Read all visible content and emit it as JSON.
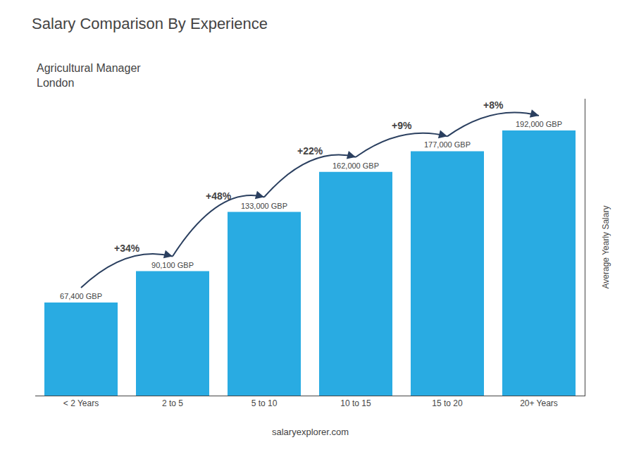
{
  "chart_data": {
    "type": "bar",
    "title": "Salary Comparison By Experience",
    "subtitle": [
      "Agricultural Manager",
      "London"
    ],
    "ylabel": "Average Yearly Salary",
    "categories": [
      "< 2 Years",
      "2 to 5",
      "5 to 10",
      "10 to 15",
      "15 to 20",
      "20+ Years"
    ],
    "values": [
      67400,
      90100,
      133000,
      162000,
      177000,
      192000
    ],
    "value_labels": [
      "67,400 GBP",
      "90,100 GBP",
      "133,000 GBP",
      "162,000 GBP",
      "177,000 GBP",
      "192,000 GBP"
    ],
    "data_labels": true,
    "color": "#29ABE2",
    "ylim": [
      0,
      215000
    ],
    "tick_labels": "x",
    "grid": false,
    "annotations": [
      {
        "text": "+34%",
        "from": "< 2 Years",
        "to": "2 to 5"
      },
      {
        "text": "+48%",
        "from": "2 to 5",
        "to": "5 to 10"
      },
      {
        "text": "+22%",
        "from": "5 to 10",
        "to": "10 to 15"
      },
      {
        "text": "+9%",
        "from": "10 to 15",
        "to": "15 to 20"
      },
      {
        "text": "+8%",
        "from": "15 to 20",
        "to": "20+ Years"
      },
      {
        "text": "salaryexplorer.com"
      }
    ]
  }
}
